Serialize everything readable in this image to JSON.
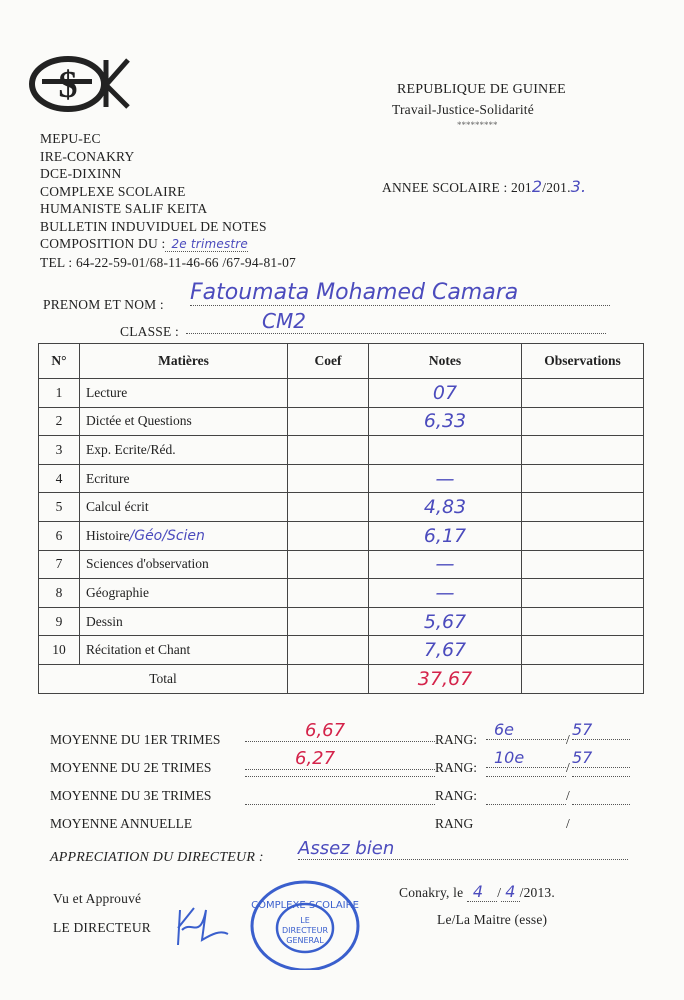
{
  "header": {
    "logo_text": "CSHSK",
    "republic": "REPUBLIQUE DE GUINEE",
    "motto": "Travail-Justice-Solidarité",
    "stars": "*********",
    "school_lines": [
      "MEPU-EC",
      "IRE-CONAKRY",
      "DCE-DIXINN",
      "COMPLEXE SCOLAIRE",
      "HUMANISTE SALIF KEITA",
      "BULLETIN INDUVIDUEL DE NOTES"
    ],
    "composition_label": "COMPOSITION DU :",
    "composition_value": "2e trimestre",
    "tel": "TEL : 64-22-59-01/68-11-46-66 /67-94-81-07",
    "annee_label": "ANNEE SCOLAIRE : 201",
    "annee_v1": "2",
    "annee_mid": "/201.",
    "annee_v2": "3."
  },
  "student": {
    "name_label": "PRENOM ET NOM :",
    "name_value": "Fatoumata Mohamed Camara",
    "class_label": "CLASSE :",
    "class_value": "CM2"
  },
  "table": {
    "headers": [
      "N°",
      "Matières",
      "Coef",
      "Notes",
      "Observations"
    ],
    "rows": [
      {
        "n": "1",
        "subject": "Lecture",
        "subject_hw": "",
        "coef": "",
        "note": "07"
      },
      {
        "n": "2",
        "subject": "Dictée et Questions",
        "subject_hw": "",
        "coef": "",
        "note": "6,33"
      },
      {
        "n": "3",
        "subject": "Exp. Ecrite/Réd.",
        "subject_hw": "",
        "coef": "",
        "note": ""
      },
      {
        "n": "4",
        "subject": "Ecriture",
        "subject_hw": "",
        "coef": "",
        "note": "—"
      },
      {
        "n": "5",
        "subject": "Calcul  écrit",
        "subject_hw": "",
        "coef": "",
        "note": "4,83"
      },
      {
        "n": "6",
        "subject": "Histoire",
        "subject_hw": "/Géo/Scien",
        "coef": "",
        "note": "6,17"
      },
      {
        "n": "7",
        "subject": "Sciences d'observation",
        "subject_hw": "",
        "coef": "",
        "note": "—"
      },
      {
        "n": "8",
        "subject": "Géographie",
        "subject_hw": "",
        "coef": "",
        "note": "—"
      },
      {
        "n": "9",
        "subject": "Dessin",
        "subject_hw": "",
        "coef": "",
        "note": "5,67"
      },
      {
        "n": "10",
        "subject": "Récitation et Chant",
        "subject_hw": "",
        "coef": "",
        "note": "7,67"
      }
    ],
    "total_label": "Total",
    "total_value": "37,67"
  },
  "averages": [
    {
      "label": "MOYENNE DU 1ER TRIMES",
      "value": "6,67",
      "rang_label": "RANG:",
      "rang": "6e",
      "effectif": "57"
    },
    {
      "label": "MOYENNE DU 2E TRIMES",
      "value": "6,27",
      "rang_label": "RANG:",
      "rang": "10e",
      "effectif": "57"
    },
    {
      "label": "MOYENNE DU 3E TRIMES",
      "value": "",
      "rang_label": "RANG:",
      "rang": "",
      "effectif": ""
    },
    {
      "label": "MOYENNE ANNUELLE",
      "value": "",
      "rang_label": "RANG",
      "rang": "",
      "effectif": ""
    }
  ],
  "footer": {
    "appreciation_label": "APPRECIATION DU DIRECTEUR :",
    "appreciation_value": "Assez bien",
    "vu": "Vu et Approuvé",
    "directeur": "LE DIRECTEUR",
    "place_label": "Conakry, le",
    "date_day": "4",
    "date_month": "4",
    "date_year": "/2013.",
    "maitre": "Le/La Maitre (esse)",
    "stamp_text": "COMPLEXE SCOLAIRE HUMANISTE SALIF KEITA - LE DIRECTEUR GENERAL"
  },
  "colors": {
    "ink_blue": "#4b4bbd",
    "ink_red": "#d4234a",
    "stamp_blue": "#3a5fcd"
  }
}
